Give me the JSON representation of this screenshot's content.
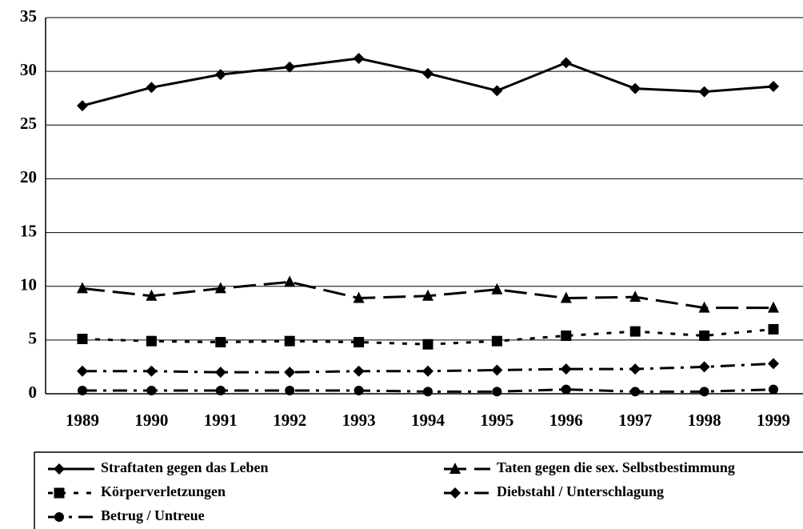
{
  "chart_data": {
    "type": "line",
    "categories": [
      "1989",
      "1990",
      "1991",
      "1992",
      "1993",
      "1994",
      "1995",
      "1996",
      "1997",
      "1998",
      "1999"
    ],
    "ylim": [
      0,
      35
    ],
    "yticks": [
      0,
      5,
      10,
      15,
      20,
      25,
      30,
      35
    ],
    "grid": true,
    "legend": "bottom",
    "series": [
      {
        "name": "Straftaten gegen das Leben",
        "color": "#000000",
        "marker": "diamond",
        "dash": "solid",
        "values": [
          26.8,
          28.5,
          29.7,
          30.4,
          31.2,
          29.8,
          28.2,
          30.8,
          28.4,
          28.1,
          28.6
        ]
      },
      {
        "name": "Taten gegen die sex. Selbstbestimmung",
        "color": "#000000",
        "marker": "triangle",
        "dash": "long-dash",
        "values": [
          9.8,
          9.1,
          9.8,
          10.4,
          8.9,
          9.1,
          9.7,
          8.9,
          9.0,
          8.0,
          8.0
        ]
      },
      {
        "name": "Körperverletzungen",
        "color": "#000000",
        "marker": "square",
        "dash": "short-dash",
        "values": [
          5.1,
          4.9,
          4.8,
          4.9,
          4.8,
          4.6,
          4.9,
          5.4,
          5.8,
          5.4,
          6.0
        ]
      },
      {
        "name": "Diebstahl / Unterschlagung",
        "color": "#000000",
        "marker": "diamond",
        "dash": "dash-dot",
        "values": [
          2.1,
          2.1,
          2.0,
          2.0,
          2.1,
          2.1,
          2.2,
          2.3,
          2.3,
          2.5,
          2.8
        ]
      },
      {
        "name": "Betrug / Untreue",
        "color": "#000000",
        "marker": "circle",
        "dash": "dash-dot",
        "values": [
          0.3,
          0.3,
          0.3,
          0.3,
          0.3,
          0.2,
          0.2,
          0.4,
          0.2,
          0.2,
          0.4
        ]
      }
    ]
  }
}
